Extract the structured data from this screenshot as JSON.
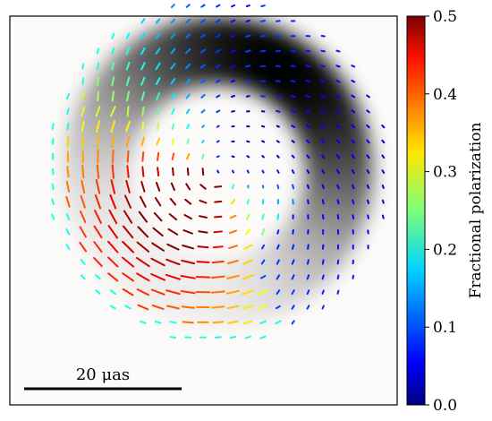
{
  "chart_data": {
    "type": "polarization-map",
    "image": {
      "description": "grayscale total-intensity ring",
      "background_color": "#fdfbfa",
      "ring_center": [
        0,
        0
      ],
      "ring_radius_uas": 12.5,
      "ring_width_uas": 4.3,
      "brightness_peak_angle_deg": 60
    },
    "scale_bar": {
      "label": "20 μas",
      "length_uas": 20
    },
    "colorbar": {
      "label": "Fractional polarization",
      "colormap": "jet",
      "range": [
        0.0,
        0.5
      ],
      "ticks": [
        "0.0",
        "0.1",
        "0.2",
        "0.3",
        "0.4",
        "0.5"
      ]
    },
    "field_of_view_uas": [
      -20,
      20
    ],
    "ticks_grid_spacing_uas": 1.55,
    "notes_colors": {
      "lower_left_high_frac": "#8b0000",
      "ring_top_mid_frac": "#33ffcc",
      "ring_right_low_frac": "#0033ff"
    }
  }
}
